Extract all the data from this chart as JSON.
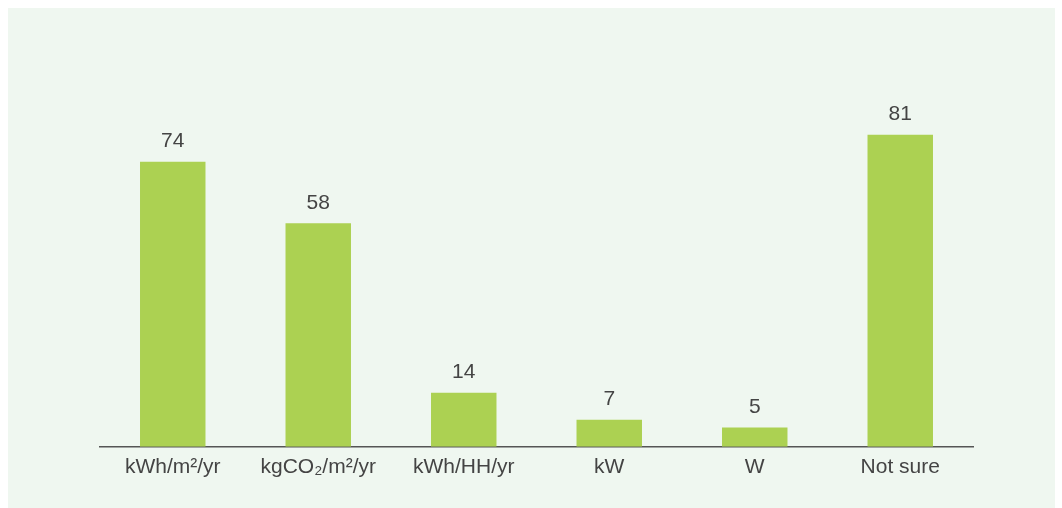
{
  "chart_data": {
    "type": "bar",
    "categories": [
      "kWh/m²/yr",
      "kgCO₂/m²/yr",
      "kWh/HH/yr",
      "kW",
      "W",
      "Not sure"
    ],
    "values": [
      74,
      58,
      14,
      7,
      5,
      81
    ],
    "color": "#acd152",
    "data_labels": true,
    "grid": false,
    "legend": false
  }
}
